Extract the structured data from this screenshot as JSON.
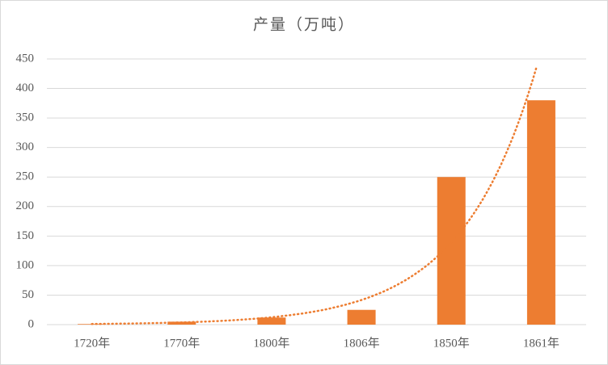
{
  "chart_data": {
    "type": "bar",
    "title": "产量（万吨）",
    "categories": [
      "1720年",
      "1770年",
      "1800年",
      "1806年",
      "1850年",
      "1861年"
    ],
    "values": [
      1,
      5,
      12,
      25,
      250,
      380
    ],
    "color": "#ed7d31",
    "ylim": [
      0,
      450
    ],
    "yticks": [
      0,
      50,
      100,
      150,
      200,
      250,
      300,
      350,
      400,
      450
    ],
    "grid": true,
    "trendline": "exponential"
  }
}
